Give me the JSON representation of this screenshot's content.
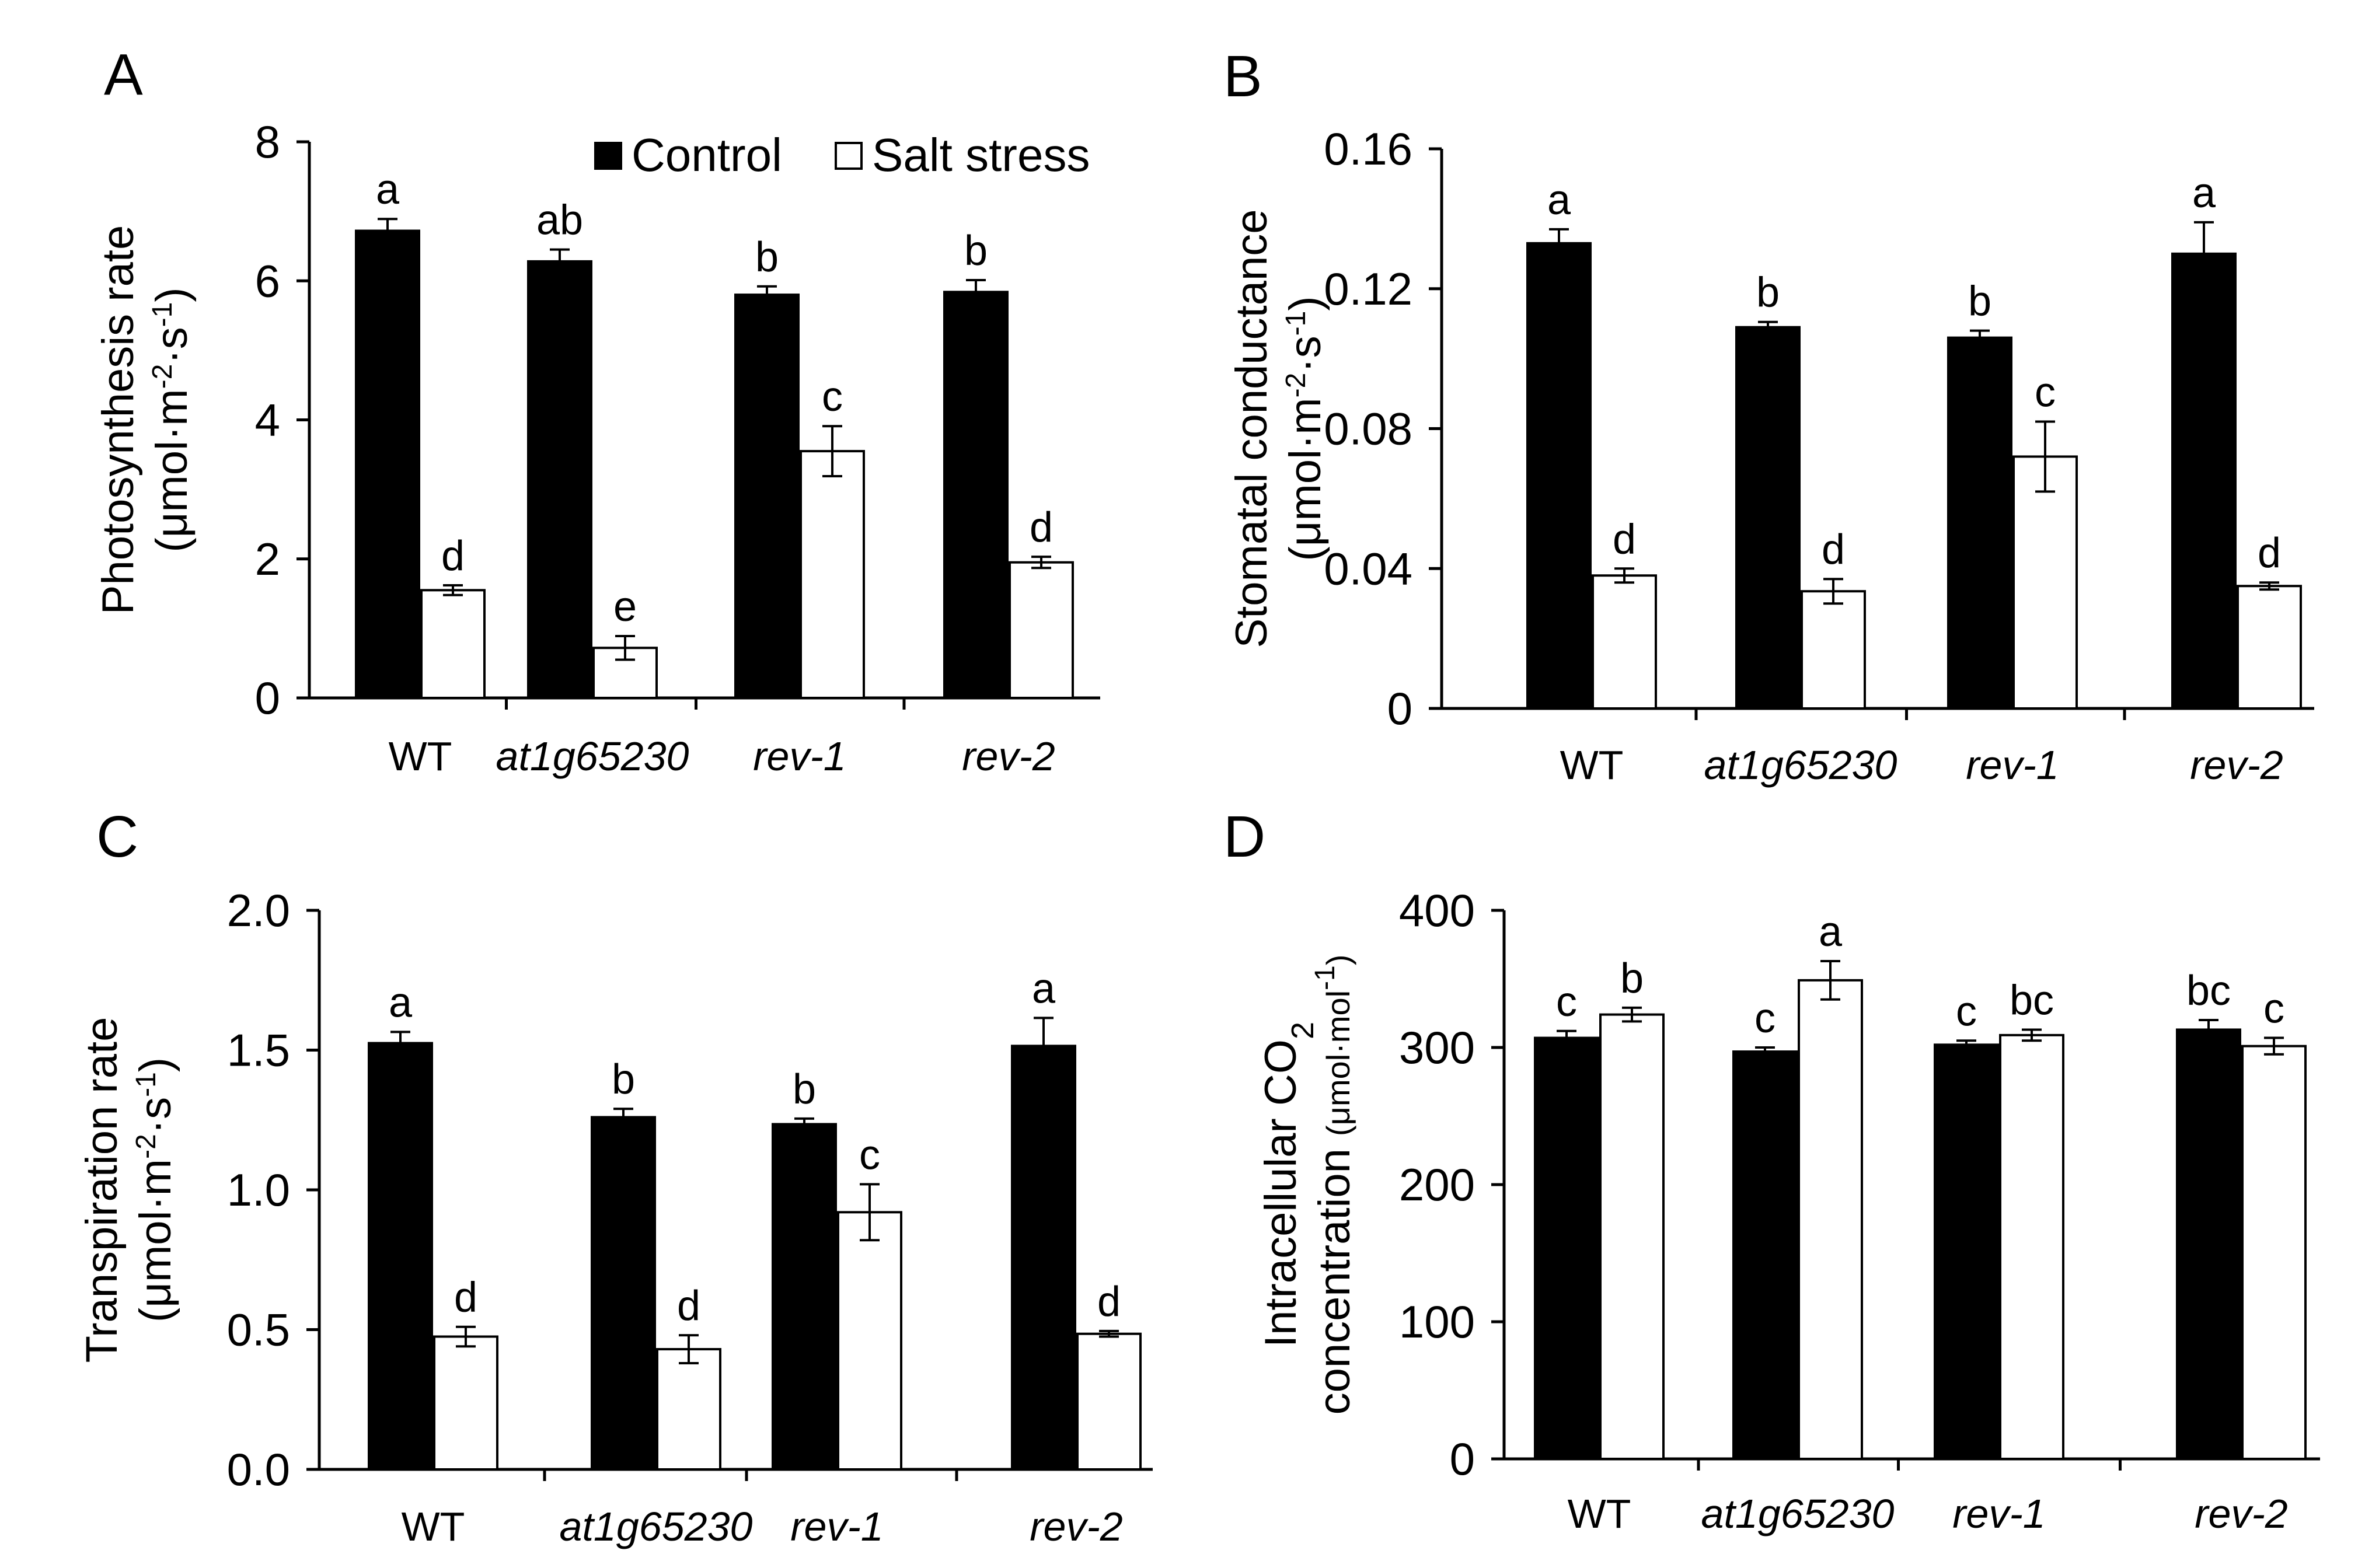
{
  "legend": {
    "items": [
      {
        "name": "Control",
        "color": "#000000"
      },
      {
        "name": "Salt stress",
        "color": "#ffffff"
      }
    ]
  },
  "chart_data": [
    {
      "panel": "A",
      "type": "bar",
      "ylabel_line1": "Photosynthesis rate",
      "ylabel_unit": {
        "base": "(μmol·m",
        "e1": "-2",
        "mid": "·s",
        "e2": "-1",
        "end": ")"
      },
      "ylim": [
        0,
        8
      ],
      "yticks": [
        0,
        2,
        4,
        6,
        8
      ],
      "ytick_labels": [
        "0",
        "2",
        "4",
        "6",
        "8"
      ],
      "categories": [
        "WT",
        "at1g65230",
        "rev-1",
        "rev-2"
      ],
      "categories_italic": [
        false,
        true,
        true,
        true
      ],
      "series": [
        {
          "name": "Control",
          "values": [
            6.72,
            6.28,
            5.8,
            5.84
          ],
          "errors": [
            0.17,
            0.17,
            0.12,
            0.17
          ],
          "letters": [
            "a",
            "ab",
            "b",
            "b"
          ]
        },
        {
          "name": "Salt stress",
          "values": [
            1.55,
            0.72,
            3.55,
            1.95
          ],
          "errors": [
            0.07,
            0.17,
            0.36,
            0.08
          ],
          "letters": [
            "d",
            "e",
            "c",
            "d"
          ]
        }
      ]
    },
    {
      "panel": "B",
      "type": "bar",
      "ylabel_line1": "Stomatal conductance",
      "ylabel_unit": {
        "base": "(μmol·m",
        "e1": "-2",
        "mid": "·s",
        "e2": "-1",
        "end": ")"
      },
      "ylim": [
        0,
        0.16
      ],
      "yticks": [
        0,
        0.04,
        0.08,
        0.12,
        0.16
      ],
      "ytick_labels": [
        "0",
        "0.04",
        "0.08",
        "0.12",
        "0.16"
      ],
      "categories": [
        "WT",
        "at1g65230",
        "rev-1",
        "rev-2"
      ],
      "categories_italic": [
        false,
        true,
        true,
        true
      ],
      "series": [
        {
          "name": "Control",
          "values": [
            0.133,
            0.109,
            0.106,
            0.13
          ],
          "errors": [
            0.004,
            0.0015,
            0.002,
            0.009
          ],
          "letters": [
            "a",
            "b",
            "b",
            "a"
          ]
        },
        {
          "name": "Salt stress",
          "values": [
            0.038,
            0.0335,
            0.072,
            0.035
          ],
          "errors": [
            0.002,
            0.0035,
            0.01,
            0.001
          ],
          "letters": [
            "d",
            "d",
            "c",
            "d"
          ]
        }
      ]
    },
    {
      "panel": "C",
      "type": "bar",
      "ylabel_line1": "Transpiration rate",
      "ylabel_unit": {
        "base": "(μmol·m",
        "e1": "-2",
        "mid": "·s",
        "e2": "-1",
        "end": ")"
      },
      "ylim": [
        0,
        2.0
      ],
      "yticks": [
        0,
        0.5,
        1.0,
        1.5,
        2.0
      ],
      "ytick_labels": [
        "0.0",
        "0.5",
        "1.0",
        "1.5",
        "2.0"
      ],
      "categories": [
        "WT",
        "at1g65230",
        "rev-1",
        "rev-2"
      ],
      "categories_italic": [
        false,
        true,
        true,
        true
      ],
      "series": [
        {
          "name": "Control",
          "values": [
            1.525,
            1.26,
            1.235,
            1.515
          ],
          "errors": [
            0.04,
            0.03,
            0.02,
            0.1
          ],
          "letters": [
            "a",
            "b",
            "b",
            "a"
          ]
        },
        {
          "name": "Salt stress",
          "values": [
            0.475,
            0.43,
            0.92,
            0.485
          ],
          "errors": [
            0.035,
            0.05,
            0.1,
            0.01
          ],
          "letters": [
            "d",
            "d",
            "c",
            "d"
          ]
        }
      ]
    },
    {
      "panel": "D",
      "type": "bar",
      "ylabel_line1": "Intracellular CO",
      "ylabel_line1_sub": "2",
      "ylabel_line2": "concentration",
      "ylabel_line2_unit": {
        "base": "(μmol·mol",
        "e1": "-1",
        "end": ")"
      },
      "ylim": [
        0,
        400
      ],
      "yticks": [
        0,
        100,
        200,
        300,
        400
      ],
      "ytick_labels": [
        "0",
        "100",
        "200",
        "300",
        "400"
      ],
      "categories": [
        "WT",
        "at1g65230",
        "rev-1",
        "rev-2"
      ],
      "categories_italic": [
        false,
        true,
        true,
        true
      ],
      "series": [
        {
          "name": "Control",
          "values": [
            307,
            297,
            302,
            313
          ],
          "errors": [
            5,
            3,
            3,
            7
          ],
          "letters": [
            "c",
            "c",
            "c",
            "bc"
          ]
        },
        {
          "name": "Salt stress",
          "values": [
            324,
            349,
            309,
            301
          ],
          "errors": [
            5,
            14,
            4,
            6
          ],
          "letters": [
            "b",
            "a",
            "bc",
            "c"
          ]
        }
      ]
    }
  ]
}
